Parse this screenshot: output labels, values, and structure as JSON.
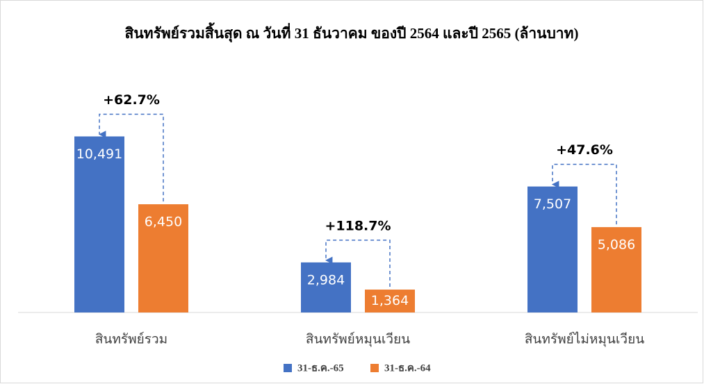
{
  "chart_data": {
    "type": "bar",
    "title": "สินทรัพย์รวมสิ้นสุด ณ วันที่ 31 ธันวาคม ของปี 2564 และปี 2565 (ล้านบาท)",
    "categories": [
      "สินทรัพย์รวม",
      "สินทรัพย์หมุนเวียน",
      "สินทรัพย์ไม่หมุนเวียน"
    ],
    "series": [
      {
        "name": "31-ธ.ค.-65",
        "color": "#4472c4",
        "values": [
          10491,
          2984,
          7507
        ],
        "value_labels": [
          "10,491",
          "2,984",
          "7,507"
        ]
      },
      {
        "name": "31-ธ.ค.-64",
        "color": "#ed7d31",
        "values": [
          6450,
          1364,
          5086
        ],
        "value_labels": [
          "6,450",
          "1,364",
          "5,086"
        ]
      }
    ],
    "annotations": [
      "+62.7%",
      "+118.7%",
      "+47.6%"
    ],
    "ylim": [
      0,
      12000
    ],
    "grid": false,
    "legend": "bottom"
  }
}
